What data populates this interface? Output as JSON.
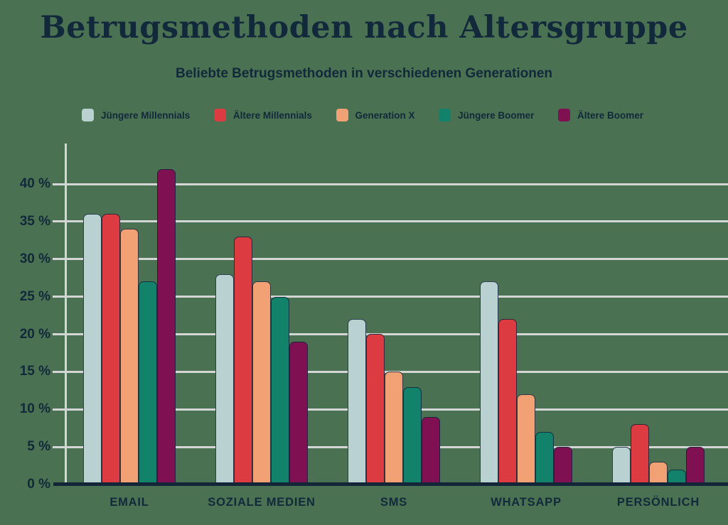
{
  "background_color": "#4a7151",
  "header": {
    "title": "Betrugsmethoden nach Altersgruppe",
    "subtitle": "Beliebte Betrugsmethoden in verschiedenen Generationen"
  },
  "colors": {
    "background": "#4a7151",
    "text_navy": "#12293c",
    "gridline": "#d3d6d5",
    "axis_dark": "#132638",
    "series_1": "#b9d1d1",
    "series_2": "#db3b41",
    "series_3": "#f2a175",
    "series_4": "#12826b",
    "series_5": "#7f1153"
  },
  "chart_data": {
    "type": "bar",
    "title": "Betrugsmethoden nach Altersgruppe",
    "subtitle": "Beliebte Betrugsmethoden in verschiedenen Generationen",
    "categories": [
      "EMAIL",
      "SOZIALE MEDIEN",
      "SMS",
      "WHATSAPP",
      "PERSÖNLICH"
    ],
    "series": [
      {
        "name": "Jüngere Millennials",
        "color": "#b9d1d1",
        "values": [
          36,
          28,
          22,
          27,
          5
        ]
      },
      {
        "name": "Ältere Millennials",
        "color": "#db3b41",
        "values": [
          36,
          33,
          20,
          22,
          8
        ]
      },
      {
        "name": "Generation X",
        "color": "#f2a175",
        "values": [
          34,
          27,
          15,
          12,
          3
        ]
      },
      {
        "name": "Jüngere Boomer",
        "color": "#12826b",
        "values": [
          27,
          25,
          13,
          7,
          2
        ]
      },
      {
        "name": "Ältere Boomer",
        "color": "#7f1153",
        "values": [
          42,
          19,
          9,
          5,
          5
        ]
      }
    ],
    "value_unit": "%",
    "y_ticks": [
      {
        "value": 40,
        "label": "40 %"
      },
      {
        "value": 35,
        "label": "35 %"
      },
      {
        "value": 30,
        "label": "30 %"
      },
      {
        "value": 25,
        "label": "25 %"
      },
      {
        "value": 20,
        "label": "20 %"
      },
      {
        "value": 15,
        "label": "15 %"
      },
      {
        "value": 10,
        "label": "10 %"
      },
      {
        "value": 5,
        "label": "5 %"
      },
      {
        "value": 0,
        "label": "0 %"
      }
    ],
    "ylim": [
      0,
      45
    ],
    "xlabel": "",
    "ylabel": "",
    "grid": "horizontal",
    "legend_position": "top"
  }
}
